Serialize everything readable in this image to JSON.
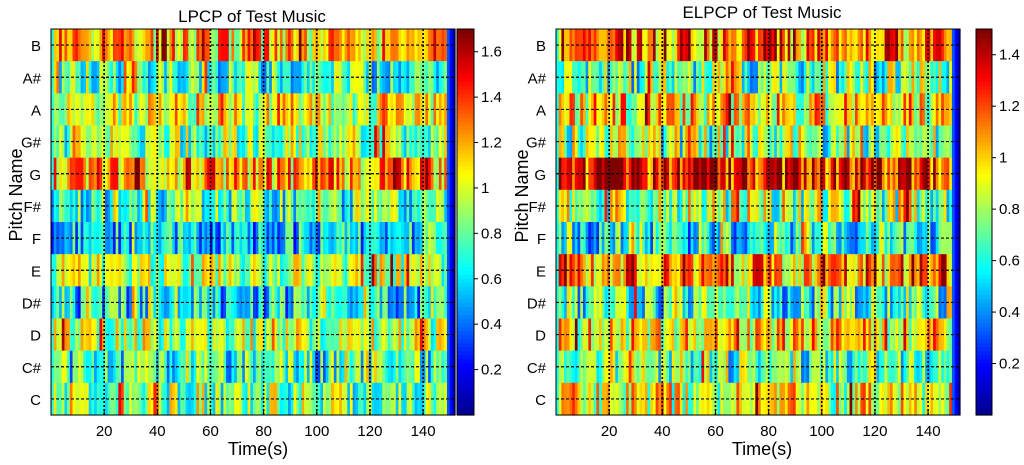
{
  "colormap": {
    "name": "jet",
    "stops": [
      "#00008f",
      "#0000ff",
      "#00ffff",
      "#ffff00",
      "#ff0000",
      "#800000"
    ]
  },
  "chart_data": [
    {
      "type": "heatmap",
      "title": "LPCP of Test Music",
      "xlabel": "Time(s)",
      "ylabel": "Pitch Name",
      "rows": [
        "B",
        "A#",
        "A",
        "G#",
        "G",
        "F#",
        "F",
        "E",
        "D#",
        "D",
        "C#",
        "C"
      ],
      "xlim": [
        0,
        152
      ],
      "xticks": [
        20,
        40,
        60,
        80,
        100,
        120,
        140
      ],
      "vlines": [
        20,
        40,
        60,
        80,
        100,
        120,
        140
      ],
      "grid": "dotted",
      "clim": [
        0,
        1.7
      ],
      "colorbar_ticks": [
        0.2,
        0.4,
        0.6,
        0.8,
        1,
        1.2,
        1.4,
        1.6
      ],
      "row_levels": {
        "B": 1.15,
        "A#": 0.75,
        "A": 1.0,
        "G#": 0.85,
        "G": 1.2,
        "F#": 0.75,
        "F": 0.55,
        "E": 0.95,
        "D#": 0.6,
        "D": 0.9,
        "C#": 0.7,
        "C": 0.85
      },
      "seed": 7
    },
    {
      "type": "heatmap",
      "title": "ELPCP of Test Music",
      "xlabel": "Time(s)",
      "ylabel": "Pitch Name",
      "rows": [
        "B",
        "A#",
        "A",
        "G#",
        "G",
        "F#",
        "F",
        "E",
        "D#",
        "D",
        "C#",
        "C"
      ],
      "xlim": [
        0,
        152
      ],
      "xticks": [
        20,
        40,
        60,
        80,
        100,
        120,
        140
      ],
      "vlines": [
        20,
        40,
        60,
        80,
        100,
        120,
        140
      ],
      "grid": "dotted",
      "clim": [
        0,
        1.5
      ],
      "colorbar_ticks": [
        0.2,
        0.4,
        0.6,
        0.8,
        1,
        1.2,
        1.4
      ],
      "row_levels": {
        "B": 1.15,
        "A#": 0.7,
        "A": 0.95,
        "G#": 0.75,
        "G": 1.3,
        "F#": 0.8,
        "F": 0.6,
        "E": 1.1,
        "D#": 0.65,
        "D": 0.95,
        "C#": 0.7,
        "C": 0.9
      },
      "seed": 13
    }
  ]
}
